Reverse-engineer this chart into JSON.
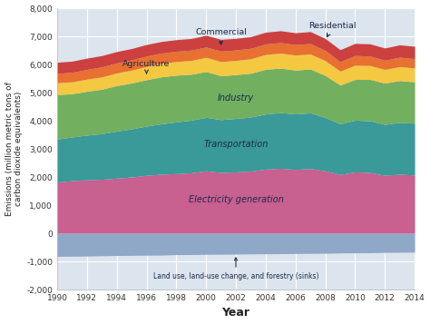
{
  "years": [
    1990,
    1991,
    1992,
    1993,
    1994,
    1995,
    1996,
    1997,
    1998,
    1999,
    2000,
    2001,
    2002,
    2003,
    2004,
    2005,
    2006,
    2007,
    2008,
    2009,
    2010,
    2011,
    2012,
    2013,
    2014
  ],
  "land_use": [
    -820,
    -815,
    -810,
    -800,
    -790,
    -785,
    -780,
    -775,
    -760,
    -755,
    -750,
    -745,
    -740,
    -735,
    -730,
    -725,
    -720,
    -715,
    -710,
    -700,
    -695,
    -690,
    -680,
    -675,
    -670
  ],
  "electricity": [
    1820,
    1870,
    1900,
    1920,
    1960,
    2000,
    2060,
    2100,
    2120,
    2150,
    2220,
    2160,
    2180,
    2210,
    2280,
    2310,
    2270,
    2300,
    2220,
    2090,
    2180,
    2160,
    2060,
    2100,
    2070
  ],
  "transportation": [
    1530,
    1550,
    1590,
    1620,
    1670,
    1710,
    1750,
    1790,
    1840,
    1870,
    1900,
    1880,
    1900,
    1920,
    1960,
    1980,
    1970,
    1980,
    1900,
    1800,
    1840,
    1840,
    1810,
    1840,
    1840
  ],
  "industry": [
    1580,
    1540,
    1560,
    1580,
    1620,
    1630,
    1650,
    1670,
    1660,
    1630,
    1630,
    1560,
    1560,
    1560,
    1590,
    1580,
    1560,
    1560,
    1490,
    1380,
    1450,
    1470,
    1470,
    1490,
    1470
  ],
  "commercial": [
    420,
    425,
    430,
    440,
    450,
    460,
    470,
    480,
    485,
    495,
    505,
    505,
    505,
    515,
    525,
    535,
    535,
    535,
    525,
    495,
    505,
    495,
    485,
    495,
    495
  ],
  "residential": [
    335,
    335,
    345,
    355,
    355,
    360,
    370,
    365,
    365,
    365,
    365,
    370,
    370,
    370,
    375,
    375,
    370,
    370,
    360,
    335,
    345,
    335,
    325,
    335,
    330
  ],
  "agriculture": [
    395,
    398,
    400,
    402,
    405,
    407,
    410,
    412,
    412,
    415,
    418,
    418,
    415,
    415,
    418,
    420,
    422,
    425,
    427,
    425,
    430,
    433,
    436,
    438,
    442
  ],
  "colors": {
    "land_use": "#8fa8c8",
    "electricity": "#c86090",
    "transportation": "#3a9999",
    "industry": "#72b060",
    "commercial": "#f5c842",
    "residential": "#e87030",
    "agriculture": "#cc4040"
  },
  "ylabel": "Emissions (million metric tons of\ncarbon dioxide equivalents)",
  "xlabel": "Year",
  "ylim": [
    -2000,
    8000
  ],
  "yticks": [
    -2000,
    -1000,
    0,
    1000,
    2000,
    3000,
    4000,
    5000,
    6000,
    7000,
    8000
  ],
  "xticks": [
    1990,
    1992,
    1994,
    1996,
    1998,
    2000,
    2002,
    2004,
    2006,
    2008,
    2010,
    2012,
    2014
  ],
  "background_color": "#dce4ee",
  "plot_bg_color": "#dce4ee",
  "outer_bg_color": "#ffffff",
  "text_color": "#1a2a4a",
  "grid_color": "#ffffff"
}
